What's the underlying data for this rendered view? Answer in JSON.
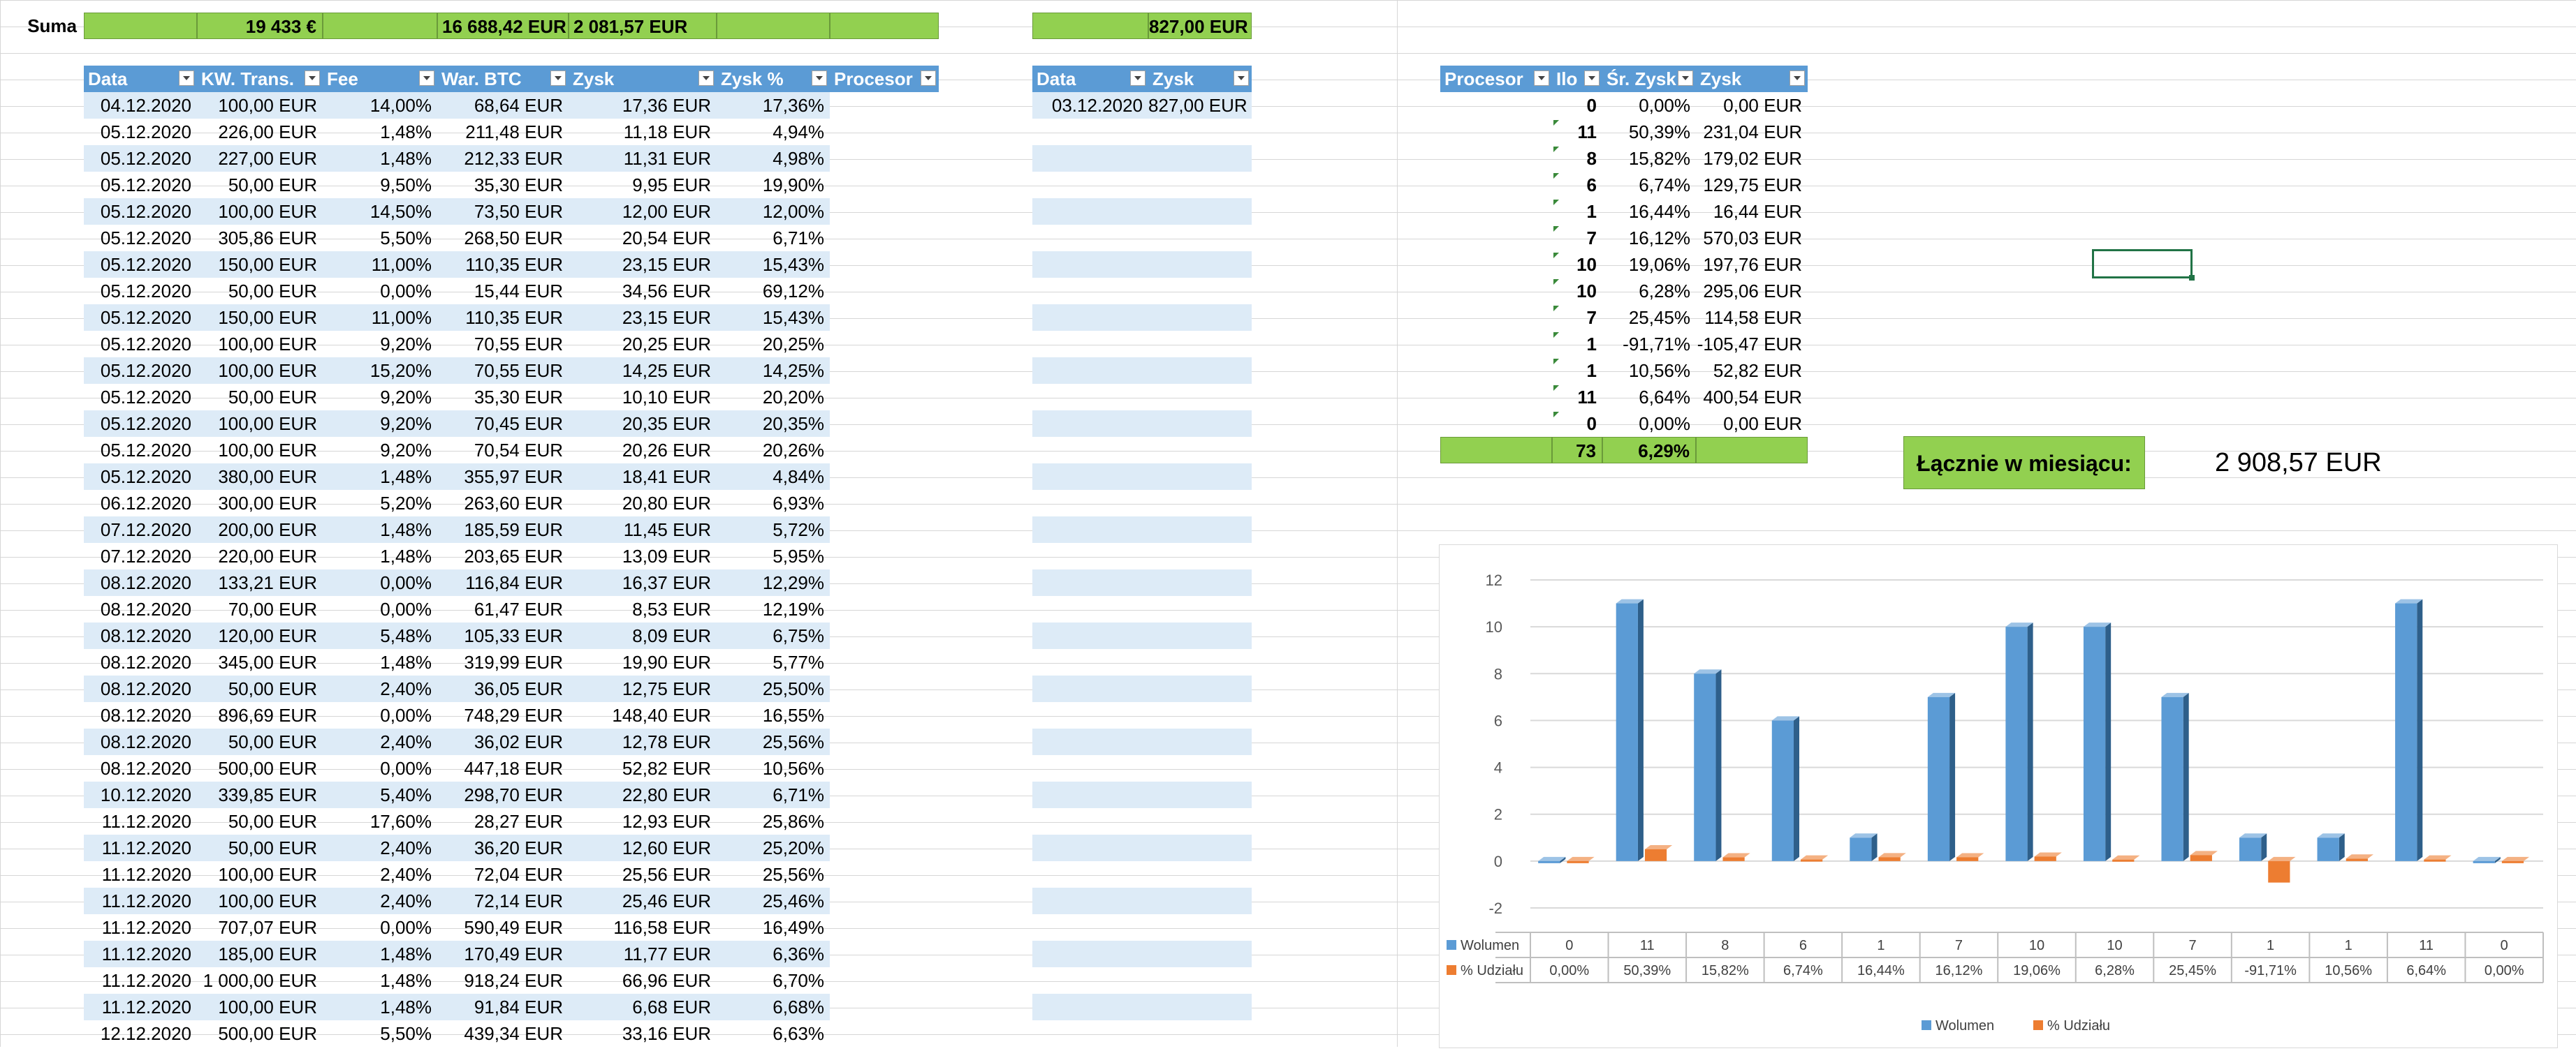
{
  "suma": {
    "label": "Suma",
    "kw_total": "19 433 €",
    "war_total": "16 688,42 EUR",
    "zysk_total": "2 081,57 EUR",
    "side_total": "827,00 EUR"
  },
  "main_table": {
    "headers": [
      "Data",
      "KW. Trans.",
      "Fee",
      "War. BTC",
      "Zysk",
      "Zysk %",
      "Procesor"
    ],
    "rows": [
      [
        "04.12.2020",
        "100,00 EUR",
        "14,00%",
        "68,64 EUR",
        "17,36 EUR",
        "17,36%"
      ],
      [
        "05.12.2020",
        "226,00 EUR",
        "1,48%",
        "211,48 EUR",
        "11,18 EUR",
        "4,94%"
      ],
      [
        "05.12.2020",
        "227,00 EUR",
        "1,48%",
        "212,33 EUR",
        "11,31 EUR",
        "4,98%"
      ],
      [
        "05.12.2020",
        "50,00 EUR",
        "9,50%",
        "35,30 EUR",
        "9,95 EUR",
        "19,90%"
      ],
      [
        "05.12.2020",
        "100,00 EUR",
        "14,50%",
        "73,50 EUR",
        "12,00 EUR",
        "12,00%"
      ],
      [
        "05.12.2020",
        "305,86 EUR",
        "5,50%",
        "268,50 EUR",
        "20,54 EUR",
        "6,71%"
      ],
      [
        "05.12.2020",
        "150,00 EUR",
        "11,00%",
        "110,35 EUR",
        "23,15 EUR",
        "15,43%"
      ],
      [
        "05.12.2020",
        "50,00 EUR",
        "0,00%",
        "15,44 EUR",
        "34,56 EUR",
        "69,12%"
      ],
      [
        "05.12.2020",
        "150,00 EUR",
        "11,00%",
        "110,35 EUR",
        "23,15 EUR",
        "15,43%"
      ],
      [
        "05.12.2020",
        "100,00 EUR",
        "9,20%",
        "70,55 EUR",
        "20,25 EUR",
        "20,25%"
      ],
      [
        "05.12.2020",
        "100,00 EUR",
        "15,20%",
        "70,55 EUR",
        "14,25 EUR",
        "14,25%"
      ],
      [
        "05.12.2020",
        "50,00 EUR",
        "9,20%",
        "35,30 EUR",
        "10,10 EUR",
        "20,20%"
      ],
      [
        "05.12.2020",
        "100,00 EUR",
        "9,20%",
        "70,45 EUR",
        "20,35 EUR",
        "20,35%"
      ],
      [
        "05.12.2020",
        "100,00 EUR",
        "9,20%",
        "70,54 EUR",
        "20,26 EUR",
        "20,26%"
      ],
      [
        "05.12.2020",
        "380,00 EUR",
        "1,48%",
        "355,97 EUR",
        "18,41 EUR",
        "4,84%"
      ],
      [
        "06.12.2020",
        "300,00 EUR",
        "5,20%",
        "263,60 EUR",
        "20,80 EUR",
        "6,93%"
      ],
      [
        "07.12.2020",
        "200,00 EUR",
        "1,48%",
        "185,59 EUR",
        "11,45 EUR",
        "5,72%"
      ],
      [
        "07.12.2020",
        "220,00 EUR",
        "1,48%",
        "203,65 EUR",
        "13,09 EUR",
        "5,95%"
      ],
      [
        "08.12.2020",
        "133,21 EUR",
        "0,00%",
        "116,84 EUR",
        "16,37 EUR",
        "12,29%"
      ],
      [
        "08.12.2020",
        "70,00 EUR",
        "0,00%",
        "61,47 EUR",
        "8,53 EUR",
        "12,19%"
      ],
      [
        "08.12.2020",
        "120,00 EUR",
        "5,48%",
        "105,33 EUR",
        "8,09 EUR",
        "6,75%"
      ],
      [
        "08.12.2020",
        "345,00 EUR",
        "1,48%",
        "319,99 EUR",
        "19,90 EUR",
        "5,77%"
      ],
      [
        "08.12.2020",
        "50,00 EUR",
        "2,40%",
        "36,05 EUR",
        "12,75 EUR",
        "25,50%"
      ],
      [
        "08.12.2020",
        "896,69 EUR",
        "0,00%",
        "748,29 EUR",
        "148,40 EUR",
        "16,55%"
      ],
      [
        "08.12.2020",
        "50,00 EUR",
        "2,40%",
        "36,02 EUR",
        "12,78 EUR",
        "25,56%"
      ],
      [
        "08.12.2020",
        "500,00 EUR",
        "0,00%",
        "447,18 EUR",
        "52,82 EUR",
        "10,56%"
      ],
      [
        "10.12.2020",
        "339,85 EUR",
        "5,40%",
        "298,70 EUR",
        "22,80 EUR",
        "6,71%"
      ],
      [
        "11.12.2020",
        "50,00 EUR",
        "17,60%",
        "28,27 EUR",
        "12,93 EUR",
        "25,86%"
      ],
      [
        "11.12.2020",
        "50,00 EUR",
        "2,40%",
        "36,20 EUR",
        "12,60 EUR",
        "25,20%"
      ],
      [
        "11.12.2020",
        "100,00 EUR",
        "2,40%",
        "72,04 EUR",
        "25,56 EUR",
        "25,56%"
      ],
      [
        "11.12.2020",
        "100,00 EUR",
        "2,40%",
        "72,14 EUR",
        "25,46 EUR",
        "25,46%"
      ],
      [
        "11.12.2020",
        "707,07 EUR",
        "0,00%",
        "590,49 EUR",
        "116,58 EUR",
        "16,49%"
      ],
      [
        "11.12.2020",
        "185,00 EUR",
        "1,48%",
        "170,49 EUR",
        "11,77 EUR",
        "6,36%"
      ],
      [
        "11.12.2020",
        "1 000,00 EUR",
        "1,48%",
        "918,24 EUR",
        "66,96 EUR",
        "6,70%"
      ],
      [
        "11.12.2020",
        "100,00 EUR",
        "1,48%",
        "91,84 EUR",
        "6,68 EUR",
        "6,68%"
      ],
      [
        "12.12.2020",
        "500,00 EUR",
        "5,50%",
        "439,34 EUR",
        "33,16 EUR",
        "6,63%"
      ]
    ]
  },
  "side_table": {
    "headers": [
      "Data",
      "Zysk"
    ],
    "rows": [
      [
        "03.12.2020",
        "827,00 EUR"
      ]
    ]
  },
  "proc_table": {
    "headers": [
      "Procesor",
      "Ilo",
      "Śr. Zysk",
      "Zysk"
    ],
    "rows": [
      [
        "0",
        "0,00%",
        "0,00 EUR"
      ],
      [
        "11",
        "50,39%",
        "231,04 EUR"
      ],
      [
        "8",
        "15,82%",
        "179,02 EUR"
      ],
      [
        "6",
        "6,74%",
        "129,75 EUR"
      ],
      [
        "1",
        "16,44%",
        "16,44 EUR"
      ],
      [
        "7",
        "16,12%",
        "570,03 EUR"
      ],
      [
        "10",
        "19,06%",
        "197,76 EUR"
      ],
      [
        "10",
        "6,28%",
        "295,06 EUR"
      ],
      [
        "7",
        "25,45%",
        "114,58 EUR"
      ],
      [
        "1",
        "-91,71%",
        "-105,47 EUR"
      ],
      [
        "1",
        "10,56%",
        "52,82 EUR"
      ],
      [
        "11",
        "6,64%",
        "400,54 EUR"
      ],
      [
        "0",
        "0,00%",
        "0,00 EUR"
      ]
    ],
    "total_count": "73",
    "total_pct": "6,29%"
  },
  "monthly": {
    "label": "Łącznie w miesiącu:",
    "value": "2 908,57 EUR"
  },
  "chart_data": {
    "type": "bar",
    "categories": [
      "",
      "",
      "",
      "",
      "",
      "",
      "",
      "",
      "",
      "",
      "",
      "",
      ""
    ],
    "series": [
      {
        "name": "Wolumen",
        "values": [
          0,
          11,
          8,
          6,
          1,
          7,
          10,
          10,
          7,
          1,
          1,
          11,
          0
        ],
        "labels": [
          "0",
          "11",
          "8",
          "6",
          "1",
          "7",
          "10",
          "10",
          "7",
          "1",
          "1",
          "11",
          "0"
        ],
        "color": "#5b9bd5"
      },
      {
        "name": "% Udziału",
        "values": [
          0,
          0.5039,
          0.1582,
          0.0674,
          0.1644,
          0.1612,
          0.1906,
          0.0628,
          0.2545,
          -0.9171,
          0.1056,
          0.0664,
          0
        ],
        "labels": [
          "0,00%",
          "50,39%",
          "15,82%",
          "6,74%",
          "16,44%",
          "16,12%",
          "19,06%",
          "6,28%",
          "25,45%",
          "-91,71%",
          "10,56%",
          "6,64%",
          "0,00%"
        ],
        "color": "#ed7d31"
      }
    ],
    "yticks": [
      "12",
      "10",
      "8",
      "6",
      "4",
      "2",
      "0",
      "-2"
    ],
    "ylim": [
      -2,
      12
    ],
    "legend": "bottom",
    "has_data_table": true
  },
  "colors": {
    "header_blue": "#5b9bd5",
    "band": "#ddebf7",
    "sum_green": "#92d050",
    "accent_orange": "#ed7d31"
  }
}
